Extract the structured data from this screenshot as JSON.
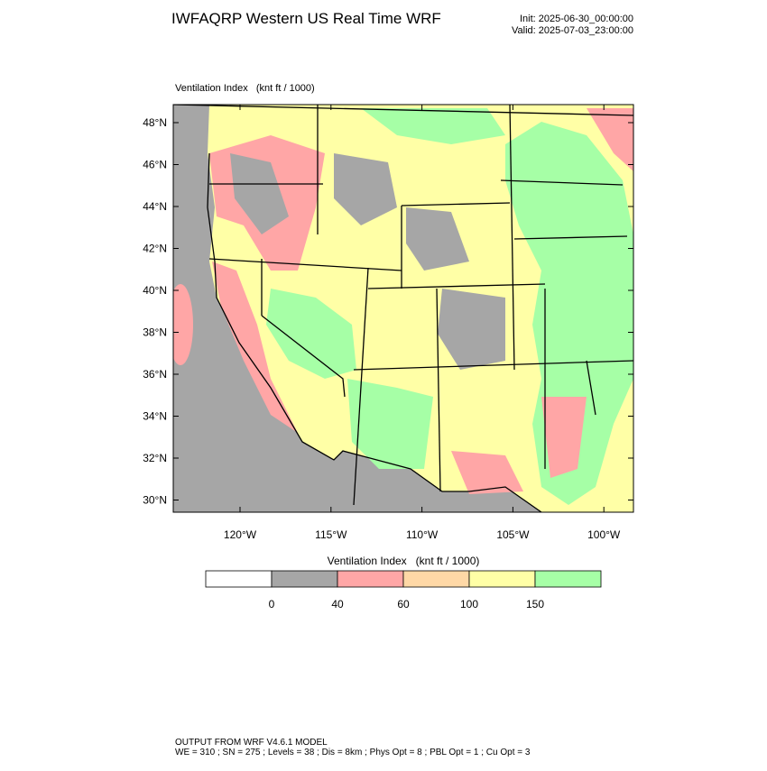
{
  "header": {
    "title": "IWFAQRP Western US Real Time WRF",
    "init": "Init: 2025-06-30_00:00:00",
    "valid": "Valid: 2025-07-03_23:00:00"
  },
  "map": {
    "title": "Ventilation Index   (knt ft / 1000)",
    "lat_labels": [
      "48°N",
      "46°N",
      "44°N",
      "42°N",
      "40°N",
      "38°N",
      "36°N",
      "34°N",
      "32°N",
      "30°N"
    ],
    "lon_labels": [
      "120°W",
      "115°W",
      "110°W",
      "105°W",
      "100°W"
    ]
  },
  "legend": {
    "title": "Ventilation Index   (knt ft / 1000)",
    "colors": [
      "#ffffff",
      "#a6a6a6",
      "#ffa6a6",
      "#ffd8a6",
      "#ffffa6",
      "#a6ffa6"
    ],
    "labels": [
      "0",
      "40",
      "60",
      "100",
      "150"
    ]
  },
  "footer": {
    "line1": "OUTPUT FROM WRF V4.6.1 MODEL",
    "line2": "WE = 310 ; SN = 275 ; Levels = 38 ; Dis = 8km ; Phys Opt = 8 ; PBL Opt = 1 ; Cu Opt = 3"
  }
}
